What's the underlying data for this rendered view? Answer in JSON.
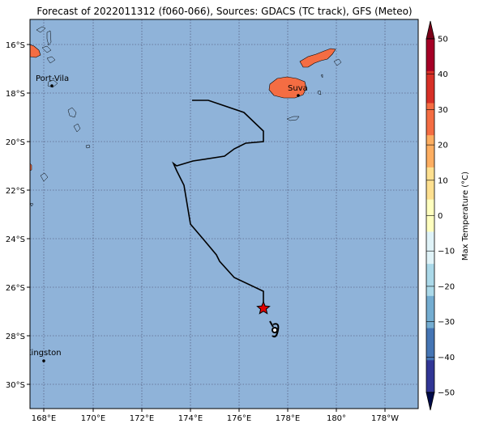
{
  "title": "Forecast of 2022011312 (f060-066), Sources: GDACS (TC track), GFS (Meteo)",
  "colors": {
    "ocean": "#8fb3d9",
    "land": "#f46d43",
    "grid": "#444466"
  },
  "map": {
    "lon_ticks": [
      "168°E",
      "170°E",
      "172°E",
      "174°E",
      "176°E",
      "178°E",
      "180°",
      "178°W"
    ],
    "lat_ticks": [
      "16°S",
      "18°S",
      "20°S",
      "22°S",
      "24°S",
      "26°S",
      "28°S",
      "30°S"
    ],
    "cities": [
      {
        "name": "Port-Vila"
      },
      {
        "name": "Suva"
      },
      {
        "name": "Kingston"
      }
    ],
    "marker": "star-icon",
    "cyclone_symbol": "cyclone-icon"
  },
  "colorbar": {
    "label": "Max Temperature (°C)",
    "ticks": [
      "50",
      "40",
      "30",
      "20",
      "10",
      "0",
      "−10",
      "−20",
      "−30",
      "−40",
      "−50"
    ],
    "colors": [
      "#a50026",
      "#d73027",
      "#f46d43",
      "#fdae61",
      "#fee090",
      "#ffffbf",
      "#e0f3f8",
      "#abd9e9",
      "#74add1",
      "#4575b4",
      "#313695",
      "#1a1a80"
    ]
  }
}
